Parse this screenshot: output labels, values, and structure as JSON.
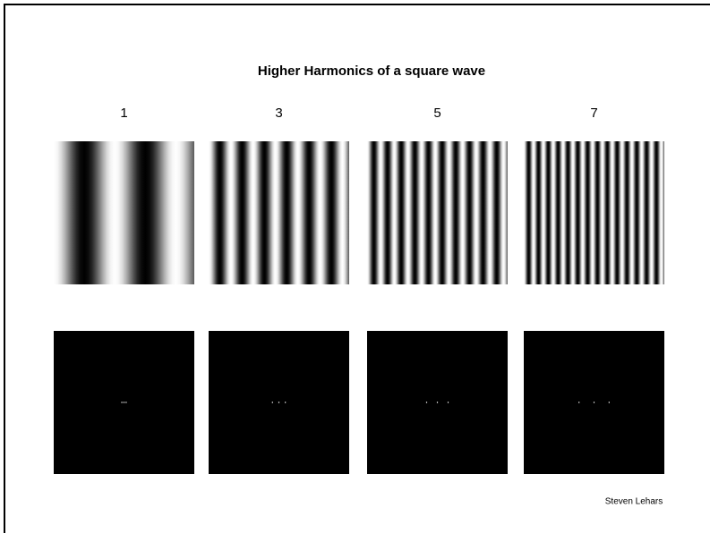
{
  "title": "Higher Harmonics of a square wave",
  "harmonics": [
    1,
    3,
    5,
    7
  ],
  "author": "Steven Lehars"
}
